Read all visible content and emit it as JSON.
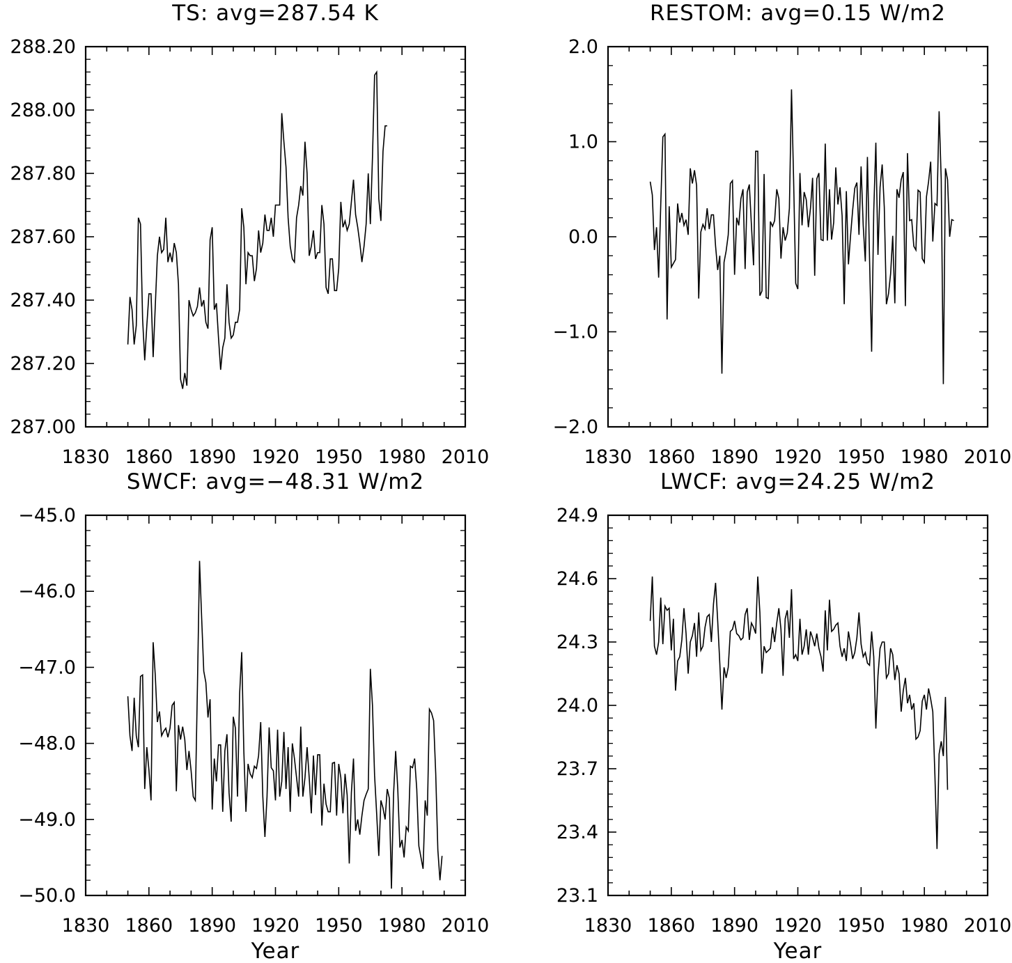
{
  "chart_data": [
    {
      "type": "line",
      "title": "TS: avg=287.54 K",
      "xlabel": "",
      "ylabel": "",
      "xlim": [
        1830,
        2010
      ],
      "ylim": [
        287.0,
        288.2
      ],
      "x_ticks": [
        1830,
        1860,
        1890,
        1920,
        1950,
        1980,
        2010
      ],
      "x_tick_labels": [
        "1830",
        "1860",
        "1890",
        "1920",
        "1950",
        "1980",
        "2010"
      ],
      "y_ticks": [
        287.0,
        287.2,
        287.4,
        287.6,
        287.8,
        288.0,
        288.2
      ],
      "y_tick_labels": [
        "287.00",
        "287.20",
        "287.40",
        "287.60",
        "287.80",
        "288.00",
        "288.20"
      ],
      "x_start": 1850,
      "x_step": 1,
      "values": [
        287.26,
        287.41,
        287.37,
        287.26,
        287.32,
        287.66,
        287.64,
        287.34,
        287.21,
        287.32,
        287.42,
        287.42,
        287.22,
        287.38,
        287.54,
        287.6,
        287.55,
        287.56,
        287.66,
        287.52,
        287.55,
        287.52,
        287.58,
        287.55,
        287.45,
        287.15,
        287.12,
        287.17,
        287.13,
        287.4,
        287.37,
        287.35,
        287.36,
        287.38,
        287.44,
        287.38,
        287.4,
        287.33,
        287.31,
        287.59,
        287.63,
        287.37,
        287.39,
        287.28,
        287.18,
        287.25,
        287.28,
        287.45,
        287.33,
        287.28,
        287.29,
        287.33,
        287.33,
        287.37,
        287.69,
        287.63,
        287.45,
        287.55,
        287.54,
        287.54,
        287.46,
        287.5,
        287.62,
        287.55,
        287.58,
        287.67,
        287.62,
        287.62,
        287.66,
        287.6,
        287.7,
        287.7,
        287.7,
        287.99,
        287.9,
        287.82,
        287.66,
        287.57,
        287.53,
        287.52,
        287.66,
        287.7,
        287.76,
        287.73,
        287.9,
        287.8,
        287.54,
        287.57,
        287.62,
        287.53,
        287.55,
        287.55,
        287.7,
        287.64,
        287.44,
        287.42,
        287.53,
        287.53,
        287.43,
        287.43,
        287.5,
        287.71,
        287.63,
        287.65,
        287.62,
        287.64,
        287.71,
        287.78,
        287.67,
        287.63,
        287.58,
        287.52,
        287.57,
        287.64,
        287.8,
        287.64,
        287.85,
        288.11,
        288.12,
        287.72,
        287.65,
        287.87,
        287.95,
        287.95
      ],
      "color": "#000000"
    },
    {
      "type": "line",
      "title": "RESTOM: avg=0.15 W/m2",
      "xlabel": "",
      "ylabel": "",
      "xlim": [
        1830,
        2010
      ],
      "ylim": [
        -2.0,
        2.0
      ],
      "x_ticks": [
        1830,
        1860,
        1890,
        1920,
        1950,
        1980,
        2010
      ],
      "x_tick_labels": [
        "1830",
        "1860",
        "1890",
        "1920",
        "1950",
        "1980",
        "2010"
      ],
      "y_ticks": [
        -2.0,
        -1.0,
        0.0,
        1.0,
        2.0
      ],
      "y_tick_labels": [
        "−2.0",
        "−1.0",
        "0.0",
        "1.0",
        "2.0"
      ],
      "x_start": 1850,
      "x_step": 1,
      "values": [
        0.58,
        0.44,
        -0.14,
        0.1,
        -0.43,
        0.34,
        1.05,
        1.08,
        -0.87,
        0.32,
        -0.32,
        -0.28,
        -0.24,
        0.35,
        0.15,
        0.25,
        0.12,
        0.18,
        0.02,
        0.72,
        0.56,
        0.7,
        0.54,
        -0.65,
        0.05,
        0.13,
        0.08,
        0.3,
        0.08,
        0.23,
        0.23,
        -0.1,
        -0.35,
        -0.2,
        -1.44,
        -0.27,
        -0.15,
        0.02,
        0.56,
        0.59,
        -0.4,
        0.2,
        0.12,
        0.4,
        0.5,
        -0.34,
        0.47,
        0.55,
        0.12,
        -0.3,
        0.9,
        0.9,
        -0.62,
        -0.57,
        0.66,
        -0.64,
        -0.65,
        0.16,
        0.11,
        0.17,
        0.5,
        0.4,
        -0.23,
        0.1,
        -0.04,
        0.04,
        0.3,
        1.55,
        0.6,
        -0.49,
        -0.55,
        0.67,
        0.12,
        0.47,
        0.39,
        0.1,
        0.3,
        0.62,
        -0.41,
        0.61,
        0.67,
        -0.03,
        -0.04,
        0.98,
        -0.04,
        0.5,
        -0.03,
        0.15,
        0.73,
        0.34,
        0.52,
        0.22,
        -0.71,
        0.48,
        -0.29,
        0.01,
        0.28,
        0.51,
        0.57,
        0.02,
        0.74,
        0.12,
        -0.26,
        0.84,
        -0.22,
        -1.21,
        0.27,
        0.99,
        -0.19,
        0.52,
        0.76,
        0.31,
        -0.71,
        -0.6,
        -0.39,
        0.01,
        -0.7,
        0.5,
        0.41,
        0.6,
        0.68,
        -0.73,
        0.88,
        0.17,
        0.18,
        -0.1,
        -0.14,
        0.49,
        0.47,
        -0.23,
        -0.27,
        0.42,
        0.58,
        0.79,
        -0.05,
        0.35,
        0.33,
        1.32,
        0.6,
        -1.55,
        0.72,
        0.6,
        0.0,
        0.18,
        0.17
      ]
    },
    {
      "type": "line",
      "title": "SWCF: avg=−48.31 W/m2",
      "xlabel": "Year",
      "ylabel": "",
      "xlim": [
        1830,
        2010
      ],
      "ylim": [
        -50.0,
        -45.0
      ],
      "x_ticks": [
        1830,
        1860,
        1890,
        1920,
        1950,
        1980,
        2010
      ],
      "x_tick_labels": [
        "1830",
        "1860",
        "1890",
        "1920",
        "1950",
        "1980",
        "2010"
      ],
      "y_ticks": [
        -50.0,
        -49.0,
        -48.0,
        -47.0,
        -46.0,
        -45.0
      ],
      "y_tick_labels": [
        "−50.0",
        "−49.0",
        "−48.0",
        "−47.0",
        "−46.0",
        "−45.0"
      ],
      "x_start": 1850,
      "x_step": 1,
      "values": [
        -47.38,
        -47.9,
        -48.1,
        -47.4,
        -47.9,
        -48.05,
        -47.12,
        -47.1,
        -48.6,
        -48.05,
        -48.35,
        -48.75,
        -46.67,
        -47.1,
        -47.72,
        -47.58,
        -47.9,
        -47.84,
        -47.8,
        -47.92,
        -47.8,
        -47.5,
        -47.46,
        -48.63,
        -47.76,
        -47.95,
        -47.78,
        -47.95,
        -48.35,
        -48.1,
        -48.36,
        -48.7,
        -48.75,
        -47.25,
        -45.6,
        -46.35,
        -47.05,
        -47.2,
        -47.66,
        -47.42,
        -48.87,
        -48.2,
        -48.5,
        -48.02,
        -48.02,
        -48.9,
        -48.1,
        -47.88,
        -48.65,
        -49.03,
        -47.65,
        -47.8,
        -48.7,
        -47.35,
        -46.8,
        -48.1,
        -48.9,
        -48.27,
        -48.4,
        -48.45,
        -48.3,
        -48.33,
        -48.16,
        -47.72,
        -48.7,
        -49.23,
        -48.7,
        -47.79,
        -48.32,
        -48.36,
        -48.75,
        -47.82,
        -48.7,
        -48.5,
        -47.85,
        -48.6,
        -48.05,
        -48.9,
        -48.0,
        -48.2,
        -48.45,
        -48.7,
        -47.78,
        -48.7,
        -48.45,
        -48.05,
        -48.45,
        -48.92,
        -48.16,
        -48.68,
        -48.15,
        -48.15,
        -49.08,
        -48.53,
        -48.8,
        -48.9,
        -48.9,
        -48.26,
        -48.25,
        -48.95,
        -48.27,
        -48.45,
        -48.92,
        -48.4,
        -48.68,
        -49.58,
        -48.65,
        -48.2,
        -49.15,
        -49.0,
        -49.2,
        -48.95,
        -48.75,
        -48.67,
        -48.6,
        -47.02,
        -47.5,
        -48.42,
        -48.93,
        -49.48,
        -48.75,
        -48.85,
        -49.0,
        -48.6,
        -48.72,
        -49.91,
        -48.67,
        -48.1,
        -48.6,
        -49.37,
        -49.27,
        -49.5,
        -49.1,
        -49.15,
        -48.3,
        -48.32,
        -48.2,
        -48.6,
        -49.35,
        -49.5,
        -49.65,
        -48.75,
        -48.95,
        -47.55,
        -47.6,
        -47.7,
        -48.4,
        -49.4,
        -49.8,
        -49.48
      ]
    },
    {
      "type": "line",
      "title": "LWCF: avg=24.25 W/m2",
      "xlabel": "Year",
      "ylabel": "",
      "xlim": [
        1830,
        2010
      ],
      "ylim": [
        23.1,
        24.9
      ],
      "x_ticks": [
        1830,
        1860,
        1890,
        1920,
        1950,
        1980,
        2010
      ],
      "x_tick_labels": [
        "1830",
        "1860",
        "1890",
        "1920",
        "1950",
        "1980",
        "2010"
      ],
      "y_ticks": [
        23.1,
        23.4,
        23.7,
        24.0,
        24.3,
        24.6,
        24.9
      ],
      "y_tick_labels": [
        "23.1",
        "23.4",
        "23.7",
        "24.0",
        "24.3",
        "24.6",
        "24.9"
      ],
      "x_start": 1850,
      "x_step": 1,
      "values": [
        24.4,
        24.61,
        24.28,
        24.24,
        24.3,
        24.51,
        24.29,
        24.47,
        24.45,
        24.46,
        24.26,
        24.41,
        24.07,
        24.21,
        24.23,
        24.31,
        24.46,
        24.34,
        24.15,
        24.3,
        24.33,
        24.39,
        24.23,
        24.44,
        24.26,
        24.28,
        24.37,
        24.42,
        24.43,
        24.3,
        24.48,
        24.58,
        24.4,
        24.2,
        23.98,
        24.18,
        24.13,
        24.18,
        24.35,
        24.36,
        24.4,
        24.34,
        24.33,
        24.31,
        24.32,
        24.43,
        24.46,
        24.31,
        24.39,
        24.37,
        24.34,
        24.61,
        24.44,
        24.15,
        24.28,
        24.25,
        24.26,
        24.27,
        24.37,
        24.3,
        24.39,
        24.46,
        24.36,
        24.14,
        24.41,
        24.45,
        24.32,
        24.55,
        24.22,
        24.24,
        24.21,
        24.41,
        24.24,
        24.28,
        24.36,
        24.24,
        24.35,
        24.32,
        24.28,
        24.34,
        24.27,
        24.23,
        24.16,
        24.45,
        24.26,
        24.5,
        24.35,
        24.36,
        24.38,
        24.39,
        24.28,
        24.23,
        24.27,
        24.21,
        24.35,
        24.29,
        24.22,
        24.25,
        24.32,
        24.44,
        24.29,
        24.23,
        24.25,
        24.2,
        24.19,
        24.35,
        24.23,
        23.89,
        24.14,
        24.27,
        24.3,
        24.3,
        24.13,
        24.15,
        24.27,
        24.24,
        24.12,
        24.19,
        24.15,
        23.97,
        24.07,
        24.13,
        24.01,
        24.05,
        23.98,
        24.01,
        23.84,
        23.85,
        23.88,
        24.02,
        24.05,
        23.98,
        24.08,
        24.03,
        23.97,
        23.67,
        23.32,
        23.77,
        23.83,
        23.76,
        24.04,
        23.6
      ]
    }
  ]
}
